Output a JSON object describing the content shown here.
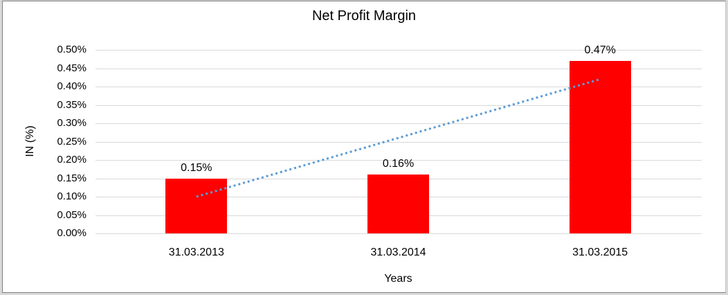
{
  "chart_data": {
    "type": "bar",
    "title": "Net Profit Margin",
    "xlabel": "Years",
    "ylabel": "IN (%)",
    "unit": "%",
    "categories": [
      "31.03.2013",
      "31.03.2014",
      "31.03.2015"
    ],
    "series": [
      {
        "name": "Net Profit Margin",
        "color": "#ff0000",
        "values": [
          0.15,
          0.16,
          0.47
        ],
        "labels": [
          "0.15%",
          "0.16%",
          "0.47%"
        ]
      }
    ],
    "ylim": [
      0,
      0.5
    ],
    "ytick_step": 0.05,
    "ytick_labels": [
      "0.00%",
      "0.05%",
      "0.10%",
      "0.15%",
      "0.20%",
      "0.25%",
      "0.30%",
      "0.35%",
      "0.40%",
      "0.45%",
      "0.50%"
    ],
    "grid": true,
    "legend": "none",
    "trendline": {
      "type": "linear",
      "style": "dotted",
      "color": "#5b9bd5",
      "start_value": 0.1,
      "end_value": 0.42
    }
  }
}
